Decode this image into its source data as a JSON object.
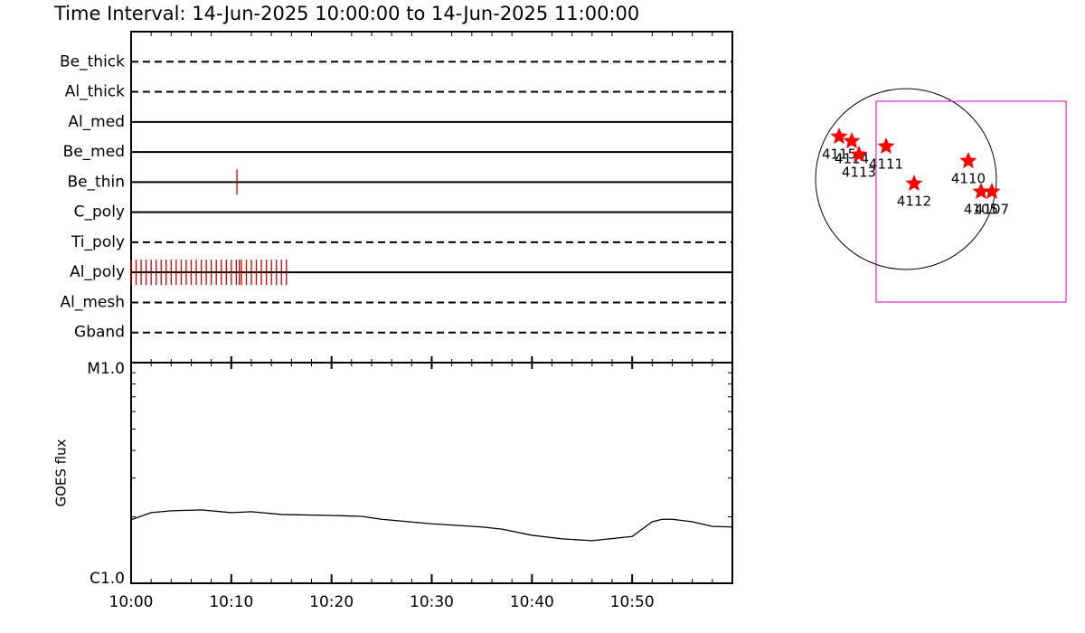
{
  "title": "Time Interval: 14-Jun-2025 10:00:00 to 14-Jun-2025 11:00:00",
  "chart_data": [
    {
      "type": "event",
      "xlim": [
        0,
        60
      ],
      "xminorticks": [
        2,
        4,
        6,
        8,
        12,
        14,
        16,
        18,
        22,
        24,
        26,
        28,
        32,
        34,
        36,
        38,
        42,
        44,
        46,
        48,
        52,
        54,
        56,
        58
      ],
      "event_color": "#cc0000",
      "series": [
        {
          "name": "Be_thick",
          "style": "dashed",
          "x": []
        },
        {
          "name": "Al_thick",
          "style": "dashed",
          "x": []
        },
        {
          "name": "Al_med",
          "style": "solid",
          "x": []
        },
        {
          "name": "Be_med",
          "style": "solid",
          "x": []
        },
        {
          "name": "Be_thin",
          "style": "solid",
          "x": [
            10.56
          ]
        },
        {
          "name": "C_poly",
          "style": "solid",
          "x": []
        },
        {
          "name": "Ti_poly",
          "style": "dashed",
          "x": []
        },
        {
          "name": "Al_poly",
          "style": "solid",
          "x": [
            0,
            0.5,
            1,
            1.5,
            2,
            2.5,
            3,
            3.5,
            4,
            4.5,
            5,
            5.5,
            6,
            6.5,
            7,
            7.5,
            8,
            8.5,
            9,
            9.5,
            10,
            10.5,
            10.8,
            11,
            11.5,
            12,
            12.5,
            13,
            13.5,
            14,
            14.5,
            15,
            15.5
          ]
        },
        {
          "name": "Al_mesh",
          "style": "dashed",
          "x": []
        },
        {
          "name": "Gband",
          "style": "dashed",
          "x": []
        }
      ]
    },
    {
      "type": "line",
      "ylabel": "GOES flux",
      "log_y": true,
      "color": "#000000",
      "xlim": [
        0,
        60
      ],
      "xticks": [
        {
          "value": 0,
          "label": "10:00"
        },
        {
          "value": 10,
          "label": "10:10"
        },
        {
          "value": 20,
          "label": "10:20"
        },
        {
          "value": 30,
          "label": "10:30"
        },
        {
          "value": 40,
          "label": "10:40"
        },
        {
          "value": 50,
          "label": "10:50"
        }
      ],
      "xminorticks": [
        2,
        4,
        6,
        8,
        12,
        14,
        16,
        18,
        22,
        24,
        26,
        28,
        32,
        34,
        36,
        38,
        42,
        44,
        46,
        48,
        52,
        54,
        56,
        58
      ],
      "ylim": [
        1e-06,
        1e-05
      ],
      "yticks": [
        {
          "value": 1e-06,
          "label": "C1.0"
        },
        {
          "value": 1e-05,
          "label": "M1.0"
        }
      ],
      "yminorticks": [
        2e-06,
        3e-06,
        4e-06,
        5e-06,
        6e-06,
        7e-06,
        8e-06,
        9e-06
      ],
      "x": [
        0,
        2,
        4,
        7,
        10,
        12,
        15,
        20,
        23,
        25,
        30,
        35,
        37,
        40,
        43,
        46,
        50,
        51,
        52,
        53,
        54,
        56,
        58,
        60
      ],
      "values": [
        1.94e-06,
        2.09e-06,
        2.13e-06,
        2.15e-06,
        2.09e-06,
        2.11e-06,
        2.05e-06,
        2.03e-06,
        2.01e-06,
        1.95e-06,
        1.86e-06,
        1.8e-06,
        1.76e-06,
        1.65e-06,
        1.59e-06,
        1.56e-06,
        1.63e-06,
        1.76e-06,
        1.9e-06,
        1.95e-06,
        1.95e-06,
        1.9e-06,
        1.81e-06,
        1.8e-06
      ]
    },
    {
      "type": "map",
      "sun_radius": 960,
      "fov": {
        "xlim": [
          -317,
          1700
        ],
        "ylim": [
          -1306,
          826
        ],
        "color": "#cc00cc"
      },
      "marker_color": "#ff0000",
      "labels": [
        "4115",
        "4114",
        "4113",
        "4111",
        "4112",
        "4110",
        "4105",
        "4107"
      ],
      "x": [
        -710,
        -576,
        -499,
        -211,
        86,
        662,
        797,
        912
      ],
      "y": [
        451,
        403,
        259,
        346,
        -48,
        192,
        -134,
        -134
      ]
    }
  ]
}
